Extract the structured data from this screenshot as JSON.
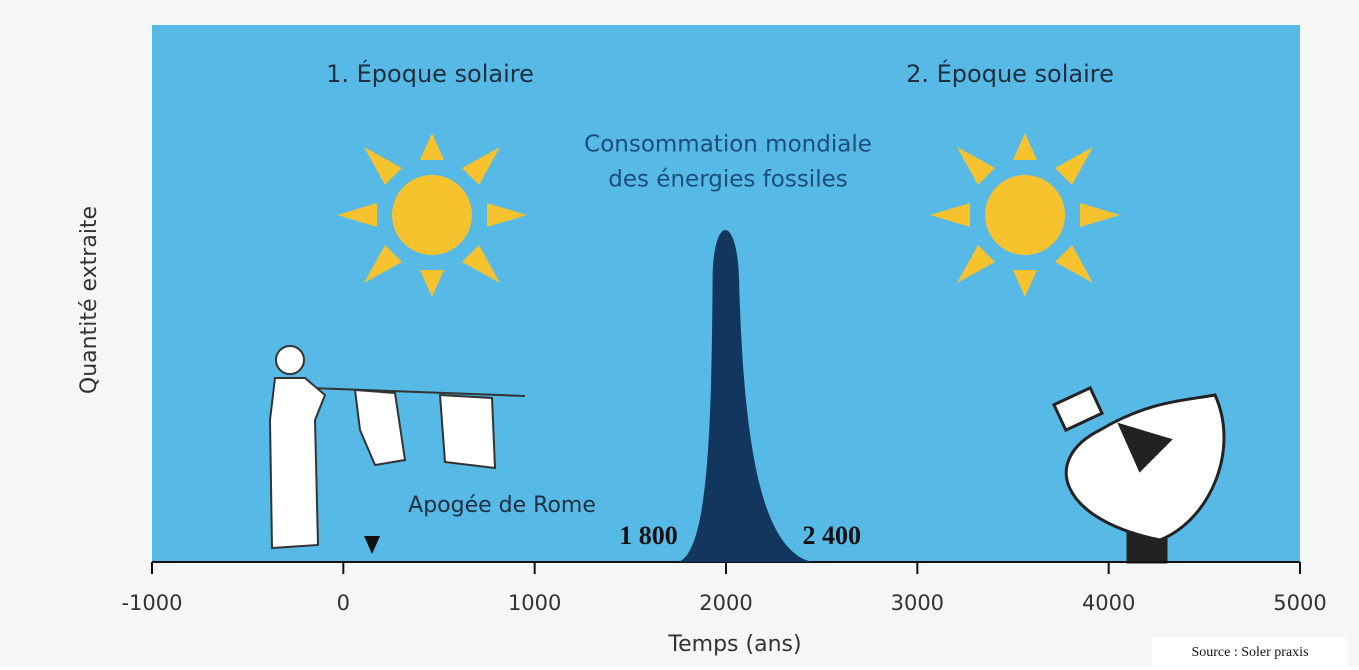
{
  "chart_data": {
    "type": "area",
    "y_label": "Quantité extraite",
    "x_label": "Temps (ans)",
    "xlim": [
      -1000,
      5000
    ],
    "xticks": [
      -1000,
      0,
      1000,
      2000,
      3000,
      4000,
      5000
    ],
    "epochs": [
      "1. Époque solaire",
      "2. Époque solaire"
    ],
    "peak_label": [
      "Consommation mondiale",
      "des énergies fossiles"
    ],
    "peak": {
      "x": [
        1750,
        2000,
        2450
      ],
      "color": "#12365e"
    },
    "range_labels": [
      {
        "value": 1800,
        "label": "1 800"
      },
      {
        "value": 2400,
        "label": "2 400"
      }
    ],
    "annotation": {
      "text": "Apogée de Rome",
      "x": 150
    },
    "source": "Source : Soler praxis"
  }
}
